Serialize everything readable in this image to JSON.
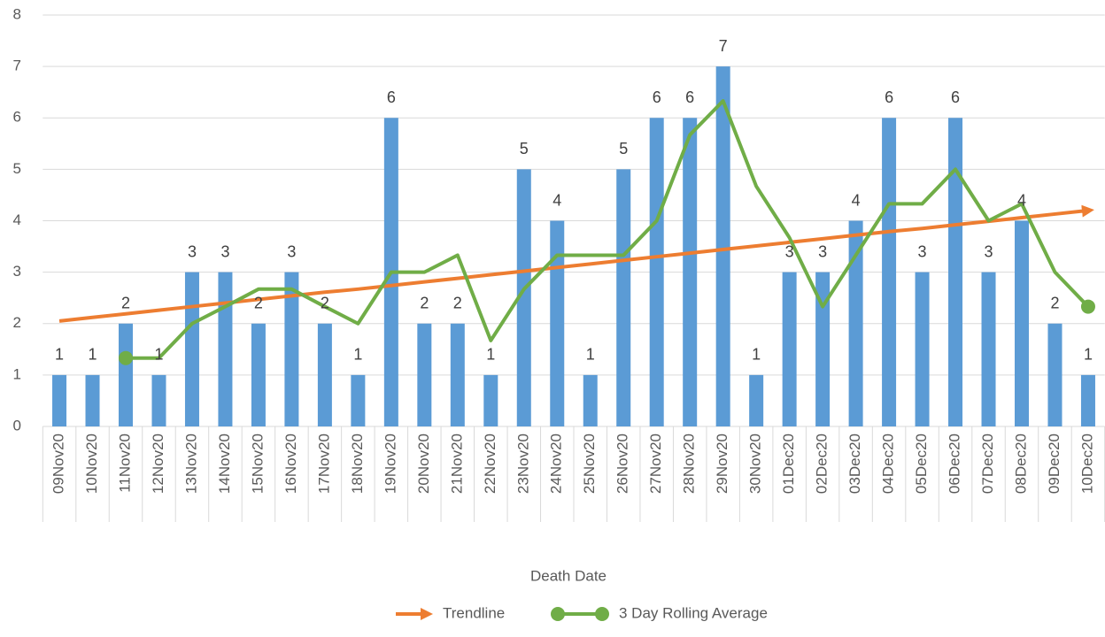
{
  "chart_data": {
    "type": "bar",
    "x_label": "Death Date",
    "categories": [
      "09Nov20",
      "10Nov20",
      "11Nov20",
      "12Nov20",
      "13Nov20",
      "14Nov20",
      "15Nov20",
      "16Nov20",
      "17Nov20",
      "18Nov20",
      "19Nov20",
      "20Nov20",
      "21Nov20",
      "22Nov20",
      "23Nov20",
      "24Nov20",
      "25Nov20",
      "26Nov20",
      "27Nov20",
      "28Nov20",
      "29Nov20",
      "30Nov20",
      "01Dec20",
      "02Dec20",
      "03Dec20",
      "04Dec20",
      "05Dec20",
      "06Dec20",
      "07Dec20",
      "08Dec20",
      "09Dec20",
      "10Dec20"
    ],
    "values": [
      1,
      1,
      2,
      1,
      3,
      3,
      2,
      3,
      2,
      1,
      6,
      2,
      2,
      1,
      5,
      4,
      1,
      5,
      6,
      6,
      7,
      1,
      3,
      3,
      4,
      6,
      3,
      6,
      3,
      4,
      2,
      1
    ],
    "color": "#5b9bd5",
    "series": [
      {
        "name": "Trendline",
        "color": "#ed7d31",
        "values": [
          2.05,
          2.12,
          2.19,
          2.26,
          2.33,
          2.4,
          2.47,
          2.54,
          2.61,
          2.67,
          2.74,
          2.81,
          2.88,
          2.95,
          3.02,
          3.09,
          3.16,
          3.23,
          3.3,
          3.37,
          3.44,
          3.51,
          3.58,
          3.65,
          3.72,
          3.79,
          3.85,
          3.92,
          3.99,
          4.06,
          4.13,
          4.2
        ]
      },
      {
        "name": "3 Day Rolling Average",
        "color": "#70ad47",
        "values": [
          null,
          null,
          1.33,
          1.33,
          2,
          2.33,
          2.67,
          2.67,
          2.33,
          2,
          3,
          3,
          3.33,
          1.67,
          2.67,
          3.33,
          3.33,
          3.33,
          4,
          5.67,
          6.33,
          4.67,
          3.67,
          2.33,
          3.33,
          4.33,
          4.33,
          5,
          4,
          4.33,
          3,
          2.33
        ]
      }
    ],
    "ylim": [
      0,
      8
    ],
    "yticks": [
      0,
      1,
      2,
      3,
      4,
      5,
      6,
      7,
      8
    ],
    "grid": true
  }
}
